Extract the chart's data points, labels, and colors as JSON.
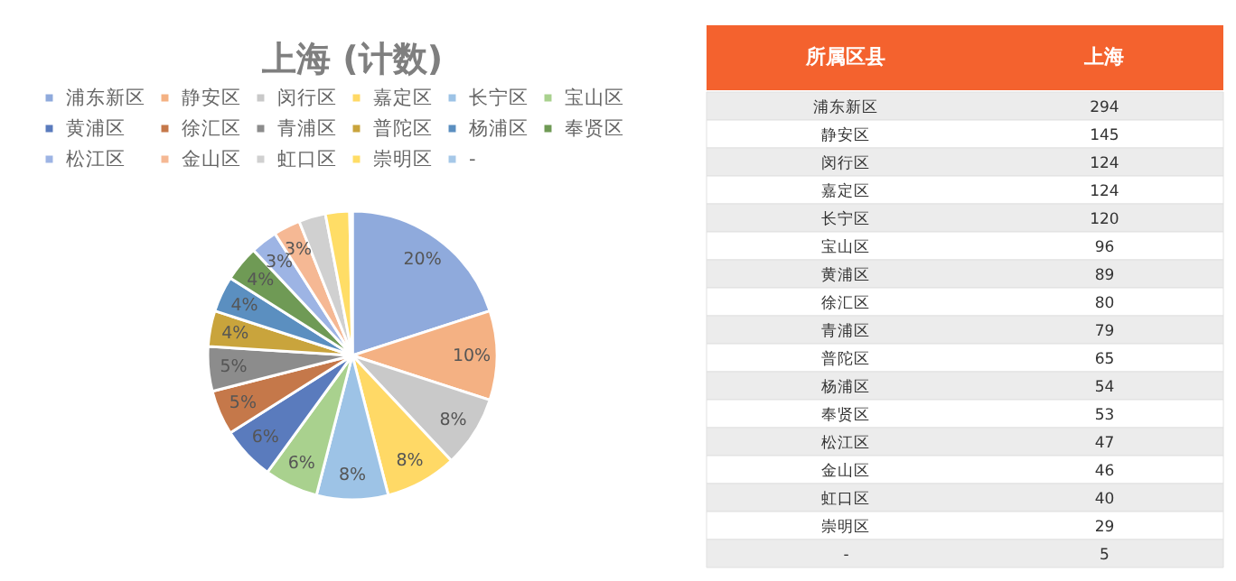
{
  "chart_data": [
    {
      "type": "pie",
      "title": "上海 (计数)",
      "categories": [
        "浦东新区",
        "静安区",
        "闵行区",
        "嘉定区",
        "长宁区",
        "宝山区",
        "黄浦区",
        "徐汇区",
        "青浦区",
        "普陀区",
        "杨浦区",
        "奉贤区",
        "松江区",
        "金山区",
        "虹口区",
        "崇明区",
        "-"
      ],
      "values": [
        20,
        10,
        8,
        8,
        8,
        6,
        6,
        5,
        5,
        4,
        4,
        4,
        3,
        3,
        3,
        2.7,
        0.3
      ],
      "colors": [
        "#8faadc",
        "#f4b183",
        "#c9c9c9",
        "#ffd966",
        "#9dc3e6",
        "#a9d18e",
        "#5a7bbd",
        "#c5784a",
        "#8c8c8c",
        "#c9a43c",
        "#5b8fc0",
        "#6f9a55",
        "#9db4e4",
        "#f5b894",
        "#d0d0d0",
        "#ffdd66",
        "#a6c8e8"
      ],
      "value_labels": [
        "20%",
        "10%",
        "8%",
        "8%",
        "8%",
        "6%",
        "6%",
        "5%",
        "5%",
        "4%",
        "4%",
        "4%",
        "3%",
        "3%",
        null,
        null,
        null
      ],
      "legend": "top"
    },
    {
      "type": "other",
      "categories": [
        "浦东新区",
        "静安区",
        "闵行区",
        "嘉定区",
        "长宁区",
        "宝山区",
        "黄浦区",
        "徐汇区",
        "青浦区",
        "普陀区",
        "杨浦区",
        "奉贤区",
        "松江区",
        "金山区",
        "虹口区",
        "崇明区",
        "-"
      ],
      "values": [
        294,
        145,
        124,
        124,
        120,
        96,
        89,
        80,
        79,
        65,
        54,
        53,
        47,
        46,
        40,
        29,
        5
      ],
      "data_labels": true,
      "annotations": [
        "所属区县",
        "上海"
      ]
    }
  ]
}
